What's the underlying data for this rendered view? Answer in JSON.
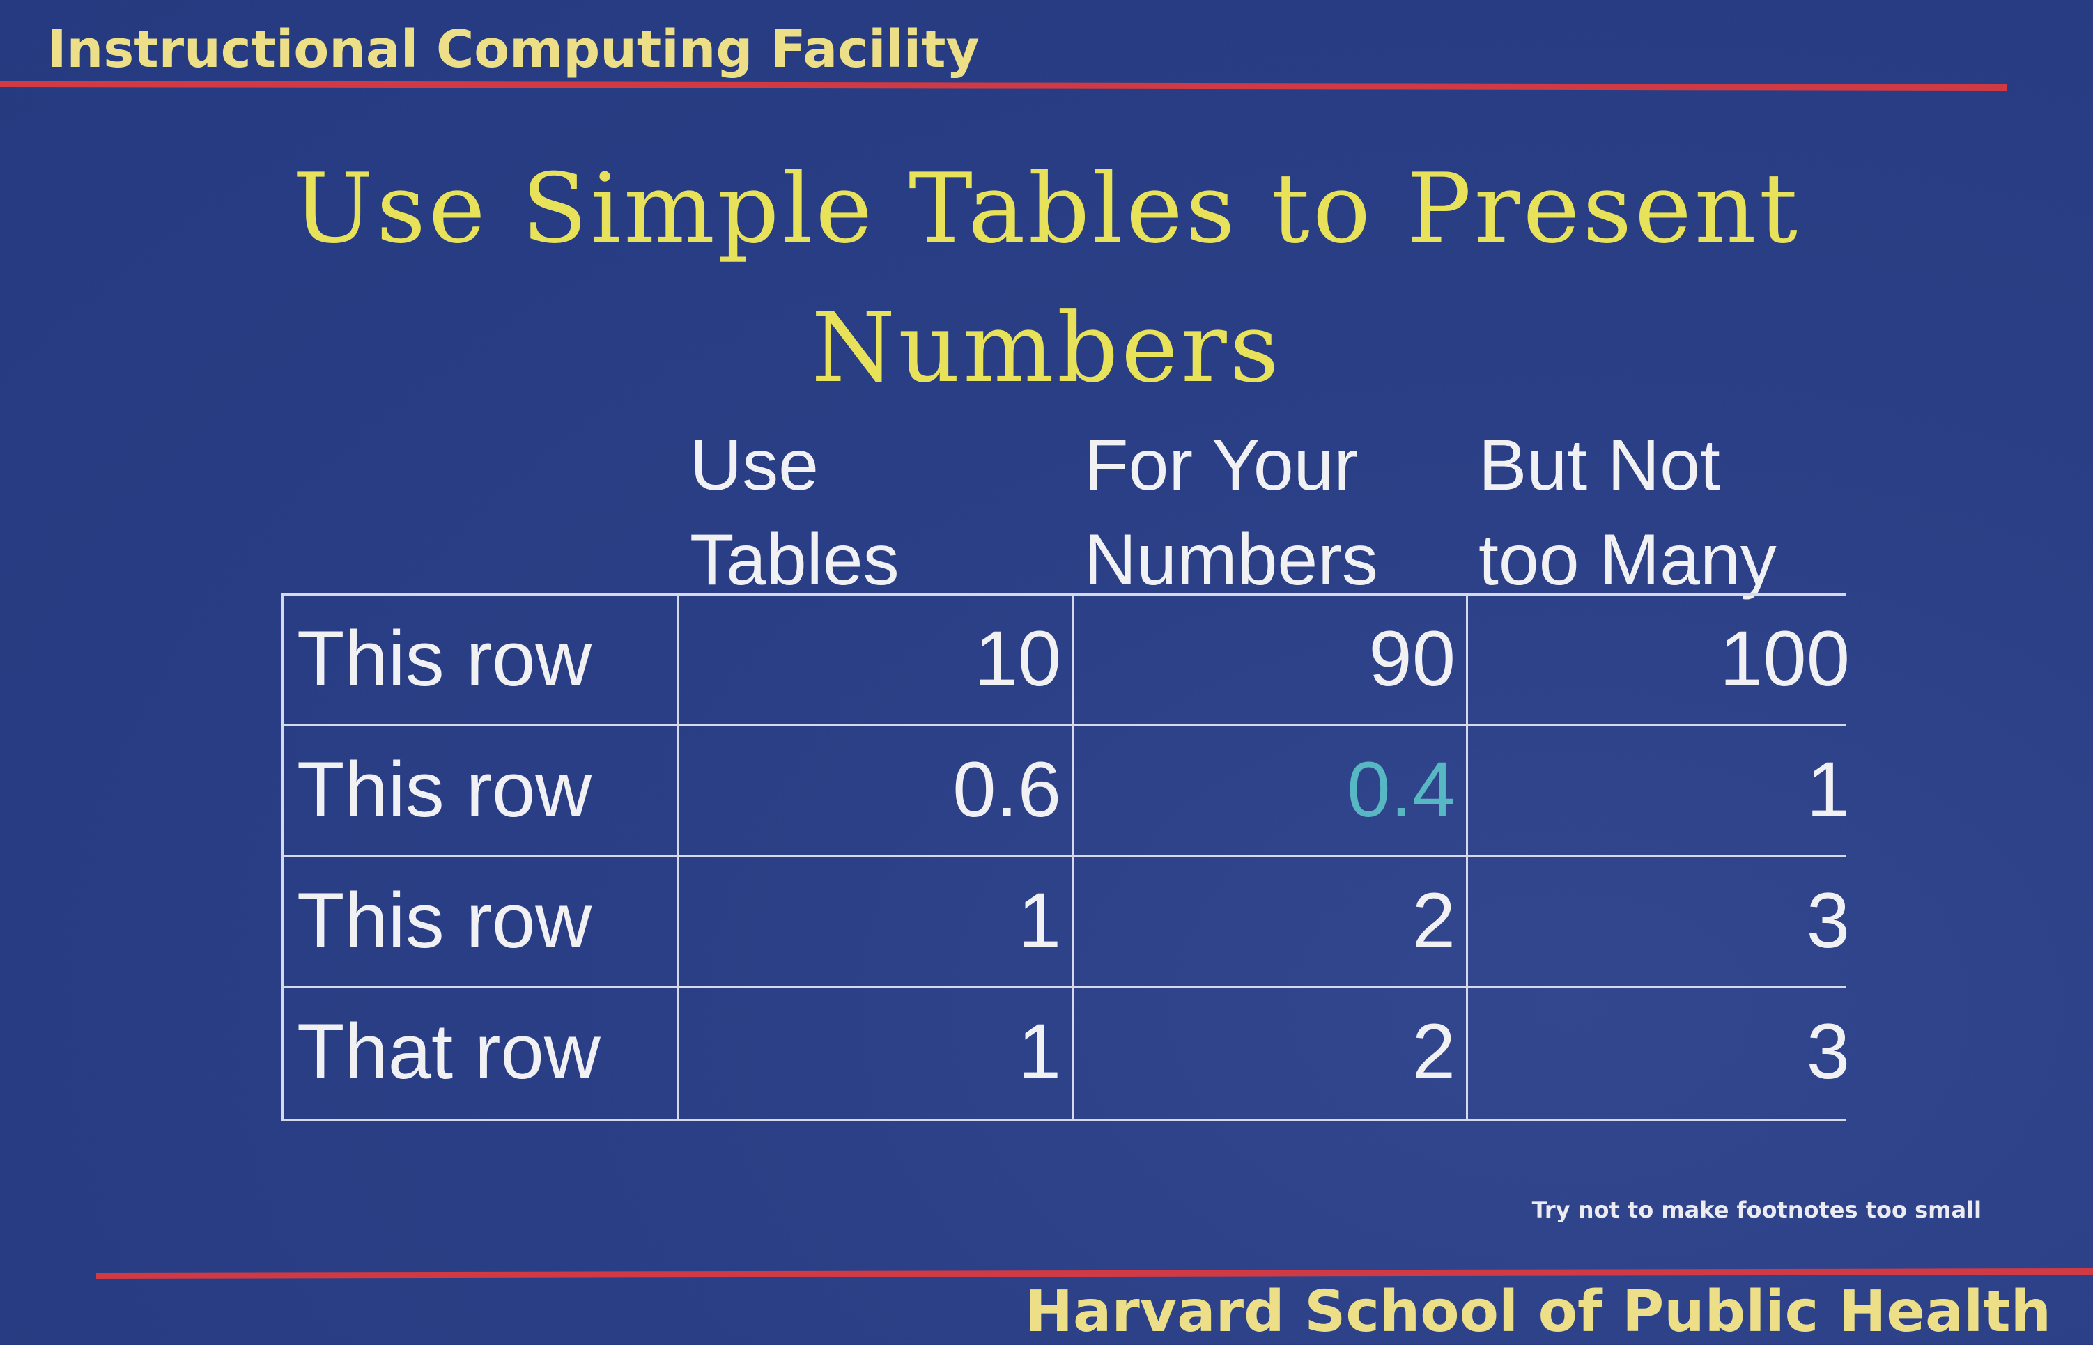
{
  "header": {
    "text": "Instructional Computing Facility"
  },
  "title": {
    "line1": "Use Simple Tables to Present",
    "line2": "Numbers"
  },
  "table": {
    "columns": [
      {
        "line1": "Use",
        "line2": "Tables"
      },
      {
        "line1": "For Your",
        "line2": "Numbers"
      },
      {
        "line1": "But Not",
        "line2": "too Many"
      }
    ],
    "rows": [
      {
        "label": "This row",
        "values": [
          "10",
          "90",
          "100"
        ]
      },
      {
        "label": "This row",
        "values": [
          "0.6",
          "0.4",
          "1"
        ]
      },
      {
        "label": "This row",
        "values": [
          "1",
          "2",
          "3"
        ]
      },
      {
        "label": "That row",
        "values": [
          "1",
          "2",
          "3"
        ]
      }
    ]
  },
  "colors": {
    "background": "#2b3f86",
    "accent_rule": "#cf3a45",
    "header_text": "#ecdf88",
    "title_text": "#e8e15a",
    "highlight_value": "#57b7c2"
  },
  "footnote": "Try not to make footnotes too small",
  "footer": {
    "text": "Harvard School of Public Health"
  }
}
